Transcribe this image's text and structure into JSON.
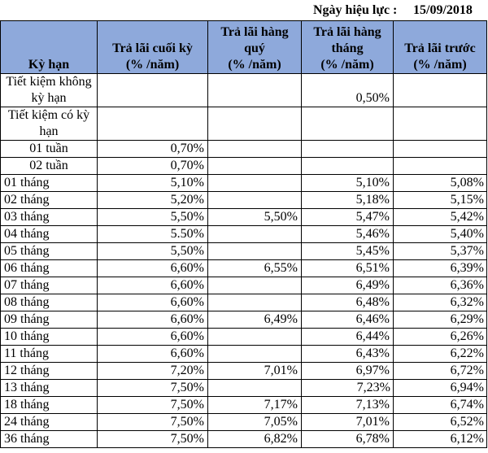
{
  "effective": {
    "label": "Ngày hiệu lực  :",
    "date": "15/09/2018"
  },
  "headers": {
    "term": "Kỳ hạn",
    "end": {
      "title": "Trả lãi cuối kỳ",
      "unit": "(% /năm)"
    },
    "quarterly": {
      "title": "Trả lãi hàng quý",
      "unit": "(% /năm)"
    },
    "monthly": {
      "title": "Trả lãi hàng tháng",
      "unit": "(% /năm)"
    },
    "upfront": {
      "title": "Trả lãi trước",
      "unit": "(% /năm)"
    }
  },
  "rows": [
    {
      "term": "Tiết kiệm không kỳ hạn",
      "end": "",
      "quarterly": "",
      "monthly": "0,50%",
      "upfront": ""
    },
    {
      "term": "Tiết kiệm có kỳ hạn",
      "end": "",
      "quarterly": "",
      "monthly": "",
      "upfront": ""
    },
    {
      "term": "01 tuần",
      "end": "0,70%",
      "quarterly": "",
      "monthly": "",
      "upfront": ""
    },
    {
      "term": "02 tuần",
      "end": "0,70%",
      "quarterly": "",
      "monthly": "",
      "upfront": ""
    },
    {
      "term": "01 tháng",
      "end": "5,10%",
      "quarterly": "",
      "monthly": "5,10%",
      "upfront": "5,08%"
    },
    {
      "term": "02 tháng",
      "end": "5,20%",
      "quarterly": "",
      "monthly": "5,18%",
      "upfront": "5,15%"
    },
    {
      "term": "03 tháng",
      "end": "5,50%",
      "quarterly": "5,50%",
      "monthly": "5,47%",
      "upfront": "5,42%"
    },
    {
      "term": "04 tháng",
      "end": "5.50%",
      "quarterly": "",
      "monthly": "5,46%",
      "upfront": "5,40%"
    },
    {
      "term": "05 tháng",
      "end": "5,50%",
      "quarterly": "",
      "monthly": "5,45%",
      "upfront": "5,37%"
    },
    {
      "term": "06 tháng",
      "end": "6,60%",
      "quarterly": "6,55%",
      "monthly": "6,51%",
      "upfront": "6,39%"
    },
    {
      "term": "07 tháng",
      "end": "6,60%",
      "quarterly": "",
      "monthly": "6,49%",
      "upfront": "6,36%"
    },
    {
      "term": "08 tháng",
      "end": "6,60%",
      "quarterly": "",
      "monthly": "6,48%",
      "upfront": "6,32%"
    },
    {
      "term": "09 tháng",
      "end": "6,60%",
      "quarterly": "6,49%",
      "monthly": "6,46%",
      "upfront": "6,29%"
    },
    {
      "term": "10 tháng",
      "end": "6,60%",
      "quarterly": "",
      "monthly": "6,44%",
      "upfront": "6,26%"
    },
    {
      "term": "11 tháng",
      "end": "6,60%",
      "quarterly": "",
      "monthly": "6,43%",
      "upfront": "6,22%"
    },
    {
      "term": "12 tháng",
      "end": "7,20%",
      "quarterly": "7,01%",
      "monthly": "6,97%",
      "upfront": "6,72%"
    },
    {
      "term": "13 tháng",
      "end": "7,50%",
      "quarterly": "",
      "monthly": "7,23%",
      "upfront": "6,94%"
    },
    {
      "term": "18 tháng",
      "end": "7,50%",
      "quarterly": "7,17%",
      "monthly": "7,13%",
      "upfront": "6,74%"
    },
    {
      "term": "24 tháng",
      "end": "7,50%",
      "quarterly": "7,05%",
      "monthly": "7,01%",
      "upfront": "6,52%"
    },
    {
      "term": "36 tháng",
      "end": "7,50%",
      "quarterly": "6,82%",
      "monthly": "6,78%",
      "upfront": "6,12%"
    }
  ]
}
